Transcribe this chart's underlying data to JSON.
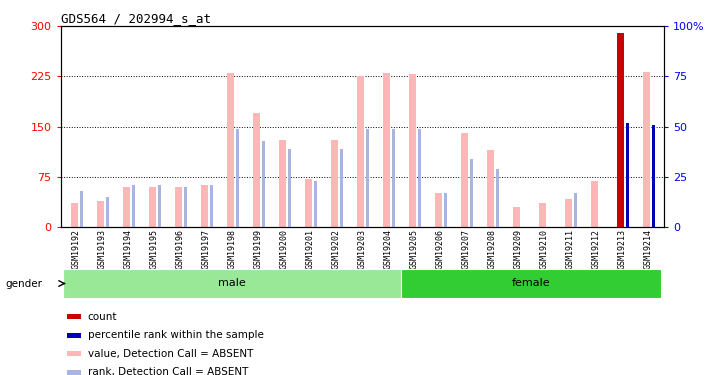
{
  "title": "GDS564 / 202994_s_at",
  "samples": [
    "GSM19192",
    "GSM19193",
    "GSM19194",
    "GSM19195",
    "GSM19196",
    "GSM19197",
    "GSM19198",
    "GSM19199",
    "GSM19200",
    "GSM19201",
    "GSM19202",
    "GSM19203",
    "GSM19204",
    "GSM19205",
    "GSM19206",
    "GSM19207",
    "GSM19208",
    "GSM19209",
    "GSM19210",
    "GSM19211",
    "GSM19212",
    "GSM19213",
    "GSM19214"
  ],
  "values_absent": [
    35,
    38,
    60,
    60,
    60,
    62,
    230,
    170,
    130,
    72,
    130,
    225,
    230,
    228,
    50,
    140,
    115,
    30,
    35,
    42,
    68,
    290,
    232
  ],
  "ranks_absent_pct": [
    18,
    15,
    21,
    21,
    20,
    21,
    49,
    43,
    39,
    23,
    39,
    49,
    49,
    49,
    17,
    34,
    29,
    null,
    null,
    17,
    null,
    null,
    null
  ],
  "count_idx": 21,
  "count_val": 290,
  "percentile_idx": [
    21,
    22
  ],
  "percentile_val": [
    52,
    51
  ],
  "gender_groups": [
    {
      "label": "male",
      "start": 0,
      "end": 13,
      "color": "#98e898"
    },
    {
      "label": "female",
      "start": 13,
      "end": 23,
      "color": "#32cd32"
    }
  ],
  "ylim_left": [
    0,
    300
  ],
  "ylim_right": [
    0,
    100
  ],
  "yticks_left": [
    0,
    75,
    150,
    225,
    300
  ],
  "yticks_right": [
    0,
    25,
    50,
    75,
    100
  ],
  "ytick_labels_right": [
    "0",
    "25",
    "50",
    "75",
    "100%"
  ],
  "color_value_absent": "#ffb6b6",
  "color_rank_absent": "#aab4e0",
  "color_count": "#cc0000",
  "color_percentile": "#0000bb",
  "legend_items": [
    {
      "color": "#cc0000",
      "label": "count"
    },
    {
      "color": "#0000bb",
      "label": "percentile rank within the sample"
    },
    {
      "color": "#ffb6b6",
      "label": "value, Detection Call = ABSENT"
    },
    {
      "color": "#aab4e0",
      "label": "rank, Detection Call = ABSENT"
    }
  ]
}
